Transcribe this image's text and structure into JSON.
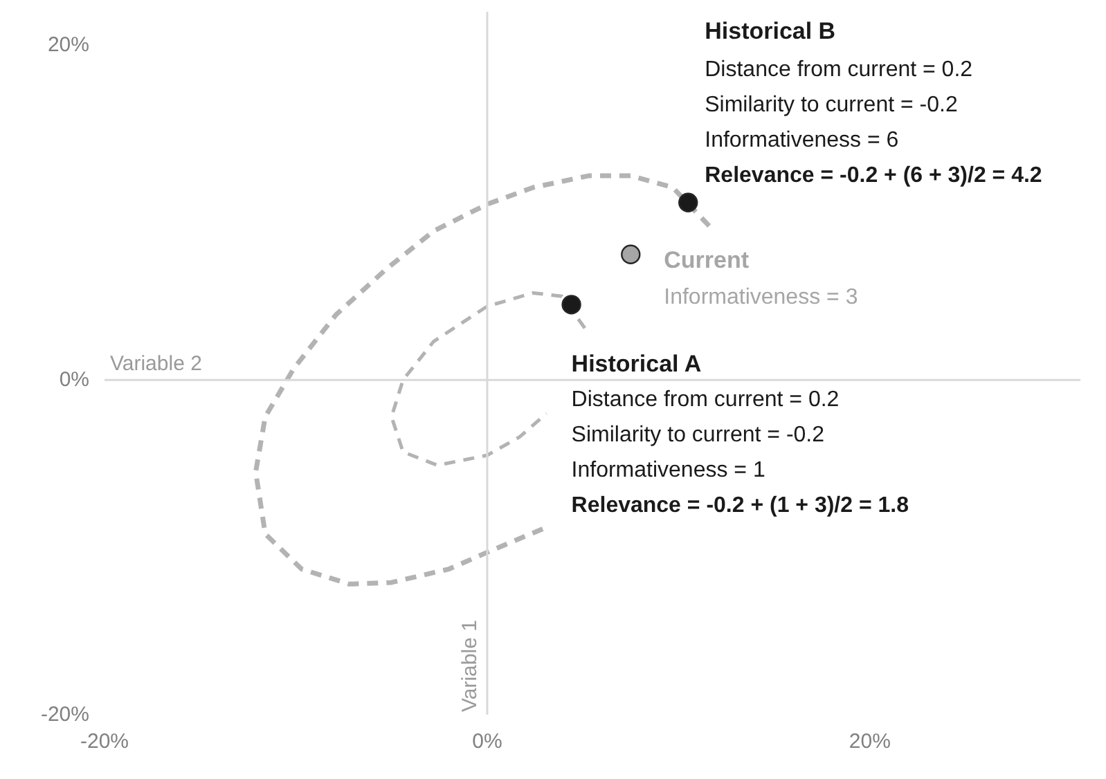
{
  "chart_data": {
    "type": "scatter",
    "xlim": [
      -20,
      31
    ],
    "ylim": [
      -20,
      22
    ],
    "xticks": [
      {
        "value": -20,
        "label": "-20%"
      },
      {
        "value": 0,
        "label": "0%"
      },
      {
        "value": 20,
        "label": "20%"
      }
    ],
    "yticks": [
      {
        "value": -20,
        "label": "-20%"
      },
      {
        "value": 0,
        "label": "0%"
      },
      {
        "value": 20,
        "label": "20%"
      }
    ],
    "grid": false,
    "ref_lines": [
      {
        "axis": "y",
        "value": 0,
        "label": "Variable 2",
        "color": "#d9d9d9"
      },
      {
        "axis": "x",
        "value": 0,
        "label": "Variable 1",
        "color": "#d9d9d9"
      }
    ],
    "series": [
      {
        "type": "line",
        "line_style": "dashed",
        "color": "#b3b3b3",
        "x": [
          11.6,
          9.7,
          7.5,
          5.3,
          2.4,
          0,
          -2.8,
          -5.3,
          -7.9,
          -10.1,
          -11.6,
          -12.1,
          -11.6,
          -9.7,
          -7.2,
          -5.0,
          -2.0,
          0.2,
          2.9
        ],
        "values": [
          9.2,
          11.5,
          12.2,
          12.2,
          11.5,
          10.5,
          8.9,
          6.6,
          3.9,
          0.7,
          -2.2,
          -5.5,
          -9.2,
          -11.3,
          -12.2,
          -12.1,
          -11.3,
          -10.2,
          -8.9
        ]
      },
      {
        "type": "line",
        "line_style": "dashed",
        "color": "#b3b3b3",
        "x": [
          5.1,
          3.9,
          2.4,
          0,
          -2.8,
          -4.4,
          -5.0,
          -4.4,
          -2.6,
          0,
          1.7,
          3.1
        ],
        "values": [
          3.1,
          5.0,
          5.2,
          4.4,
          2.3,
          0.0,
          -2.2,
          -4.3,
          -5.1,
          -4.5,
          -3.4,
          -2.0
        ]
      },
      {
        "name": "Historical B",
        "color": "#1a1a1a",
        "marker": "circle",
        "x": [
          10.5
        ],
        "values": [
          10.6
        ]
      },
      {
        "name": "Current",
        "color": "#a6a6a6",
        "marker": "circle",
        "x": [
          7.5
        ],
        "values": [
          7.5
        ]
      },
      {
        "name": "Historical A",
        "color": "#1a1a1a",
        "marker": "circle",
        "x": [
          4.4
        ],
        "values": [
          4.5
        ]
      }
    ],
    "annotations": [
      "Distance from current = 0.2\nSimilarity to current = -0.2\nInformativeness = 6\nRelevance = -0.2 + (6 + 3)/2 = 4.2",
      "Informativeness = 3",
      "Distance from current = 0.2\nSimilarity to current = -0.2\nInformativeness = 1\nRelevance = -0.2 + (1 + 3)/2 = 1.8"
    ]
  }
}
